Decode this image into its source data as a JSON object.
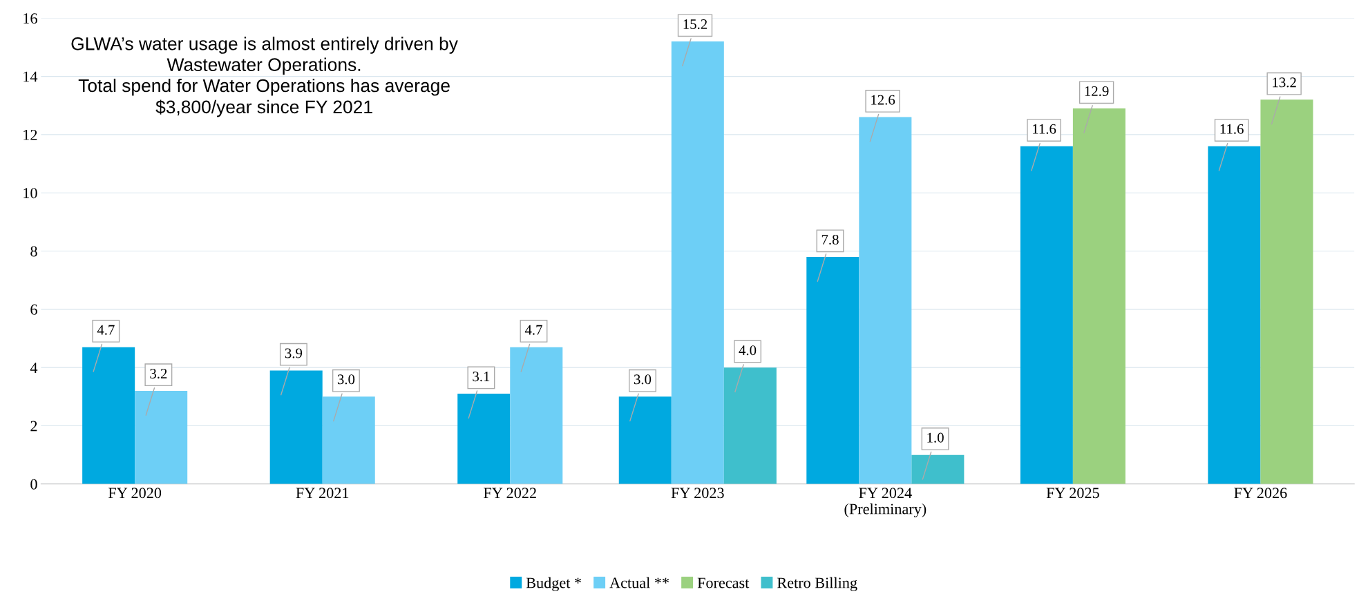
{
  "chart_data": {
    "type": "bar",
    "categories": [
      "FY 2020",
      "FY 2021",
      "FY 2022",
      "FY 2023",
      "FY 2024\n(Preliminary)",
      "FY 2025",
      "FY 2026"
    ],
    "series": [
      {
        "name": "Budget *",
        "color": "#00a9e0",
        "values": [
          4.7,
          3.9,
          3.1,
          3.0,
          7.8,
          11.6,
          11.6
        ],
        "value_labels": [
          "4.7",
          "3.9",
          "3.1",
          "3.0",
          "7.8",
          "11.6",
          "11.6"
        ]
      },
      {
        "name": "Actual **",
        "color": "#6dcff6",
        "values": [
          3.2,
          3.0,
          4.7,
          15.2,
          12.6,
          null,
          null
        ],
        "value_labels": [
          "3.2",
          "3.0",
          "4.7",
          "15.2",
          "12.6",
          null,
          null
        ]
      },
      {
        "name": "Forecast",
        "color": "#9bd17f",
        "values": [
          null,
          null,
          null,
          null,
          null,
          12.9,
          13.2
        ],
        "value_labels": [
          null,
          null,
          null,
          null,
          null,
          "12.9",
          "13.2"
        ]
      },
      {
        "name": "Retro Billing",
        "color": "#3fbfcc",
        "values": [
          null,
          null,
          null,
          4.0,
          1.0,
          null,
          null
        ],
        "value_labels": [
          null,
          null,
          null,
          "4.0",
          "1.0",
          null,
          null
        ]
      }
    ],
    "ylim": [
      0,
      16
    ],
    "yticks": [
      0,
      2,
      4,
      6,
      8,
      10,
      12,
      14,
      16
    ],
    "grid": "y",
    "legend": "bottom",
    "annotations": [
      "GLWA’s water usage is almost entirely driven by\nWastewater Operations.\nTotal spend for Water Operations has average\n$3,800/year since FY 2021"
    ]
  }
}
